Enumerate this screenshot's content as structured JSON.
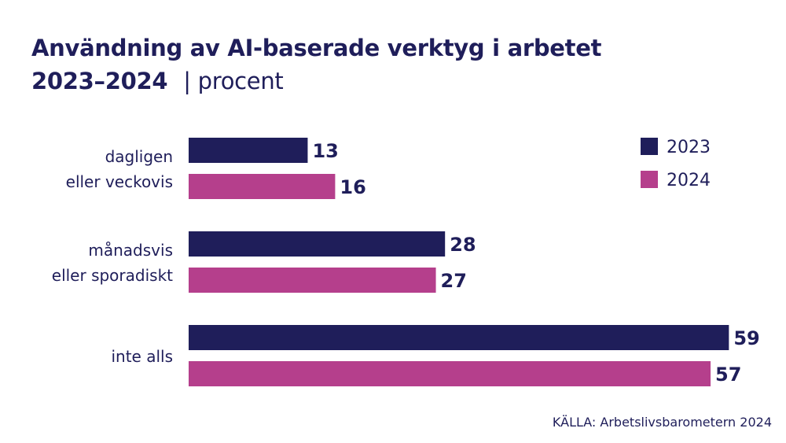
{
  "chart_data": {
    "type": "bar",
    "orientation": "horizontal",
    "title": "Användning av AI-baserade verktyg i arbetet",
    "subtitle": "2023–2024",
    "unit": "| procent",
    "categories": [
      [
        "dagligen",
        "eller veckovis"
      ],
      [
        "månadsvis",
        "eller sporadiskt"
      ],
      [
        "inte alls"
      ]
    ],
    "series": [
      {
        "name": "2023",
        "color": "#1f1e5a",
        "values": [
          13,
          28,
          59
        ]
      },
      {
        "name": "2024",
        "color": "#b53f8c",
        "values": [
          16,
          27,
          57
        ]
      }
    ],
    "xlim": [
      0,
      60
    ],
    "grid": false,
    "legend_position": "top-right",
    "source": "KÄLLA: Arbetslivsbarometern 2024"
  }
}
